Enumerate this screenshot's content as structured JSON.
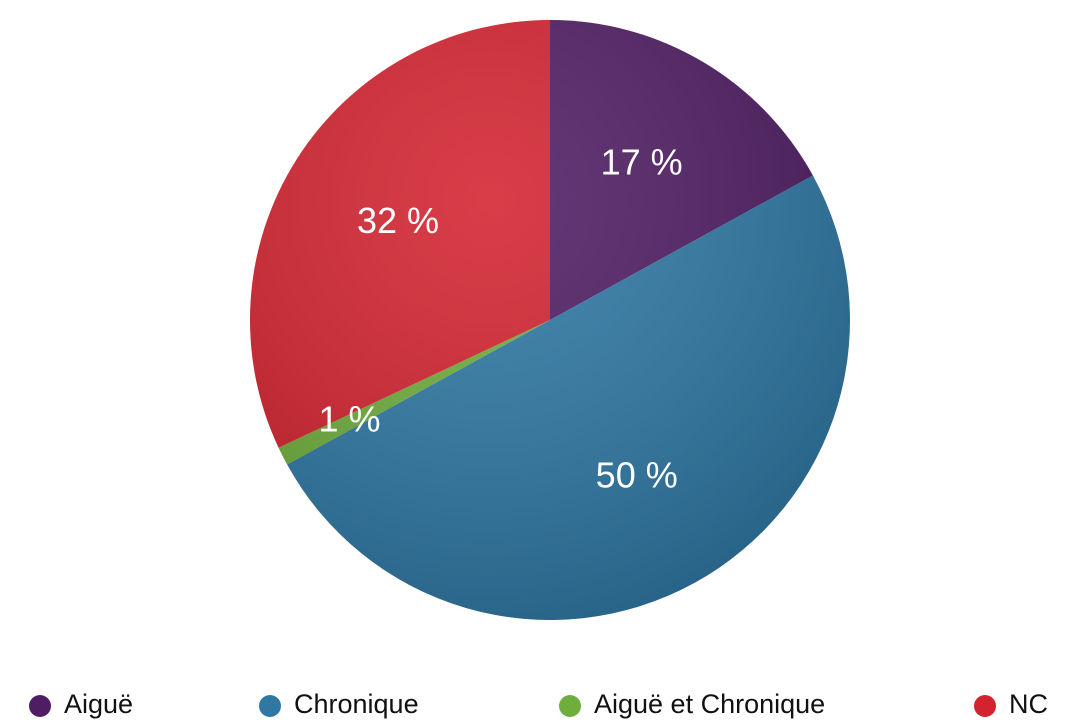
{
  "chart_data": {
    "type": "pie",
    "categories": [
      "Aiguë",
      "Chronique",
      "Aiguë et Chronique",
      "NC"
    ],
    "values": [
      17,
      50,
      1,
      32
    ],
    "value_labels": [
      "17 %",
      "50 %",
      "1 %",
      "32 %"
    ],
    "colors": [
      "#4f1d63",
      "#2f78a4",
      "#6fae3c",
      "#d3232f"
    ],
    "legend": "bottom"
  }
}
